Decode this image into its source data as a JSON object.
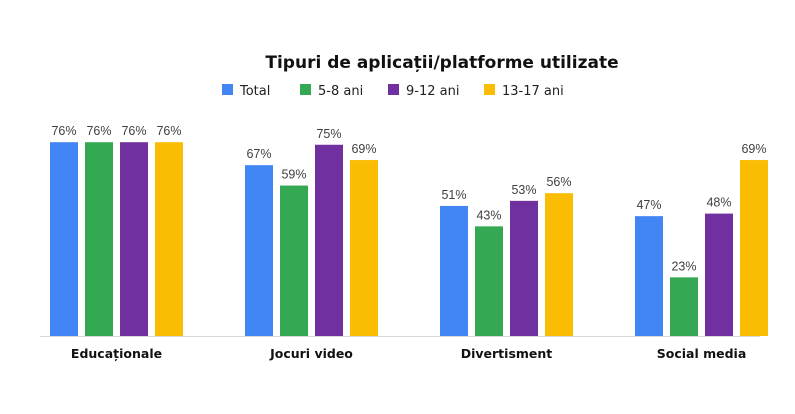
{
  "chart_data": {
    "type": "bar",
    "title": "Tipuri de aplicații/platforme utilizate",
    "categories": [
      "Educaționale",
      "Jocuri video",
      "Divertisment",
      "Social media"
    ],
    "series": [
      {
        "name": "Total",
        "color": "#4285F4",
        "values": [
          76,
          67,
          51,
          47
        ]
      },
      {
        "name": "5-8 ani",
        "color": "#34A853",
        "values": [
          76,
          59,
          43,
          23
        ]
      },
      {
        "name": "9-12 ani",
        "color": "#7030A0",
        "values": [
          76,
          75,
          53,
          48
        ]
      },
      {
        "name": "13-17 ani",
        "color": "#FBBC04",
        "values": [
          76,
          69,
          56,
          69
        ]
      }
    ],
    "value_suffix": "%",
    "ylim": [
      0,
      100
    ],
    "xlabel": "",
    "ylabel": "",
    "legend": "top",
    "grid": false,
    "baseline_color": "#D9D9D9"
  }
}
